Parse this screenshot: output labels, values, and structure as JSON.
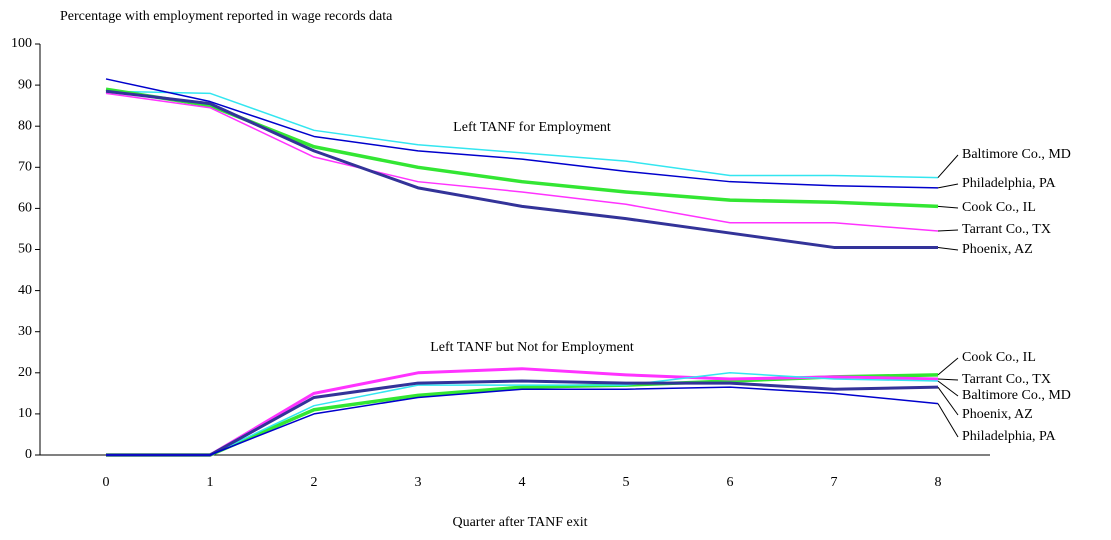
{
  "chart_data": {
    "type": "line",
    "ylabel": "Percentage with employment reported in wage records data",
    "xlabel": "Quarter after TANF exit",
    "annotations": [
      "Left TANF for Employment",
      "Left TANF but Not for Employment"
    ],
    "categories": [
      "0",
      "1",
      "2",
      "3",
      "4",
      "5",
      "6",
      "7",
      "8"
    ],
    "ylim": [
      0,
      100
    ],
    "yticks": [
      0,
      10,
      20,
      30,
      40,
      50,
      60,
      70,
      80,
      90,
      100
    ],
    "series": [
      {
        "name": "Baltimore Co., MD",
        "color": "#33e6f0",
        "line_width": 1.5,
        "values": [
          88.5,
          88,
          79,
          75.5,
          73.5,
          71.5,
          68,
          68,
          67.5
        ]
      },
      {
        "name": "Philadelphia, PA",
        "color": "#0000cc",
        "line_width": 1.5,
        "values": [
          91.5,
          86,
          77.5,
          74,
          72,
          69,
          66.5,
          65.5,
          65
        ]
      },
      {
        "name": "Cook Co., IL",
        "color": "#33e633",
        "line_width": 3.5,
        "values": [
          89,
          85,
          75,
          70,
          66.5,
          64,
          62,
          61.5,
          60.5
        ]
      },
      {
        "name": "Tarrant Co., TX",
        "color": "#ff33ff",
        "line_width": 1.5,
        "values": [
          88,
          84.5,
          72.5,
          66.5,
          64,
          61,
          56.5,
          56.5,
          54.5
        ]
      },
      {
        "name": "Phoenix, AZ",
        "color": "#333399",
        "line_width": 3,
        "values": [
          88.5,
          85.5,
          74,
          65,
          60.5,
          57.5,
          54,
          50.5,
          50.5
        ]
      },
      {
        "name": "Cook Co., IL",
        "color": "#33e633",
        "line_width": 3.5,
        "values": [
          0,
          0,
          11,
          14.5,
          16.5,
          17,
          18,
          19,
          19.5
        ]
      },
      {
        "name": "Tarrant Co., TX",
        "color": "#ff33ff",
        "line_width": 3,
        "values": [
          0,
          0,
          15,
          20,
          21,
          19.5,
          18.5,
          19,
          18.5
        ]
      },
      {
        "name": "Baltimore Co., MD",
        "color": "#33e6f0",
        "line_width": 1.5,
        "values": [
          0,
          0,
          12,
          17,
          17,
          17,
          20,
          18.5,
          18
        ]
      },
      {
        "name": "Phoenix, AZ",
        "color": "#333399",
        "line_width": 3,
        "values": [
          0,
          0,
          14,
          17.5,
          18,
          17.5,
          17.5,
          16,
          16.5
        ]
      },
      {
        "name": "Philadelphia, PA",
        "color": "#0000cc",
        "line_width": 1.5,
        "values": [
          0,
          0,
          10,
          14,
          16,
          16,
          16.5,
          15,
          12.5
        ]
      }
    ]
  }
}
